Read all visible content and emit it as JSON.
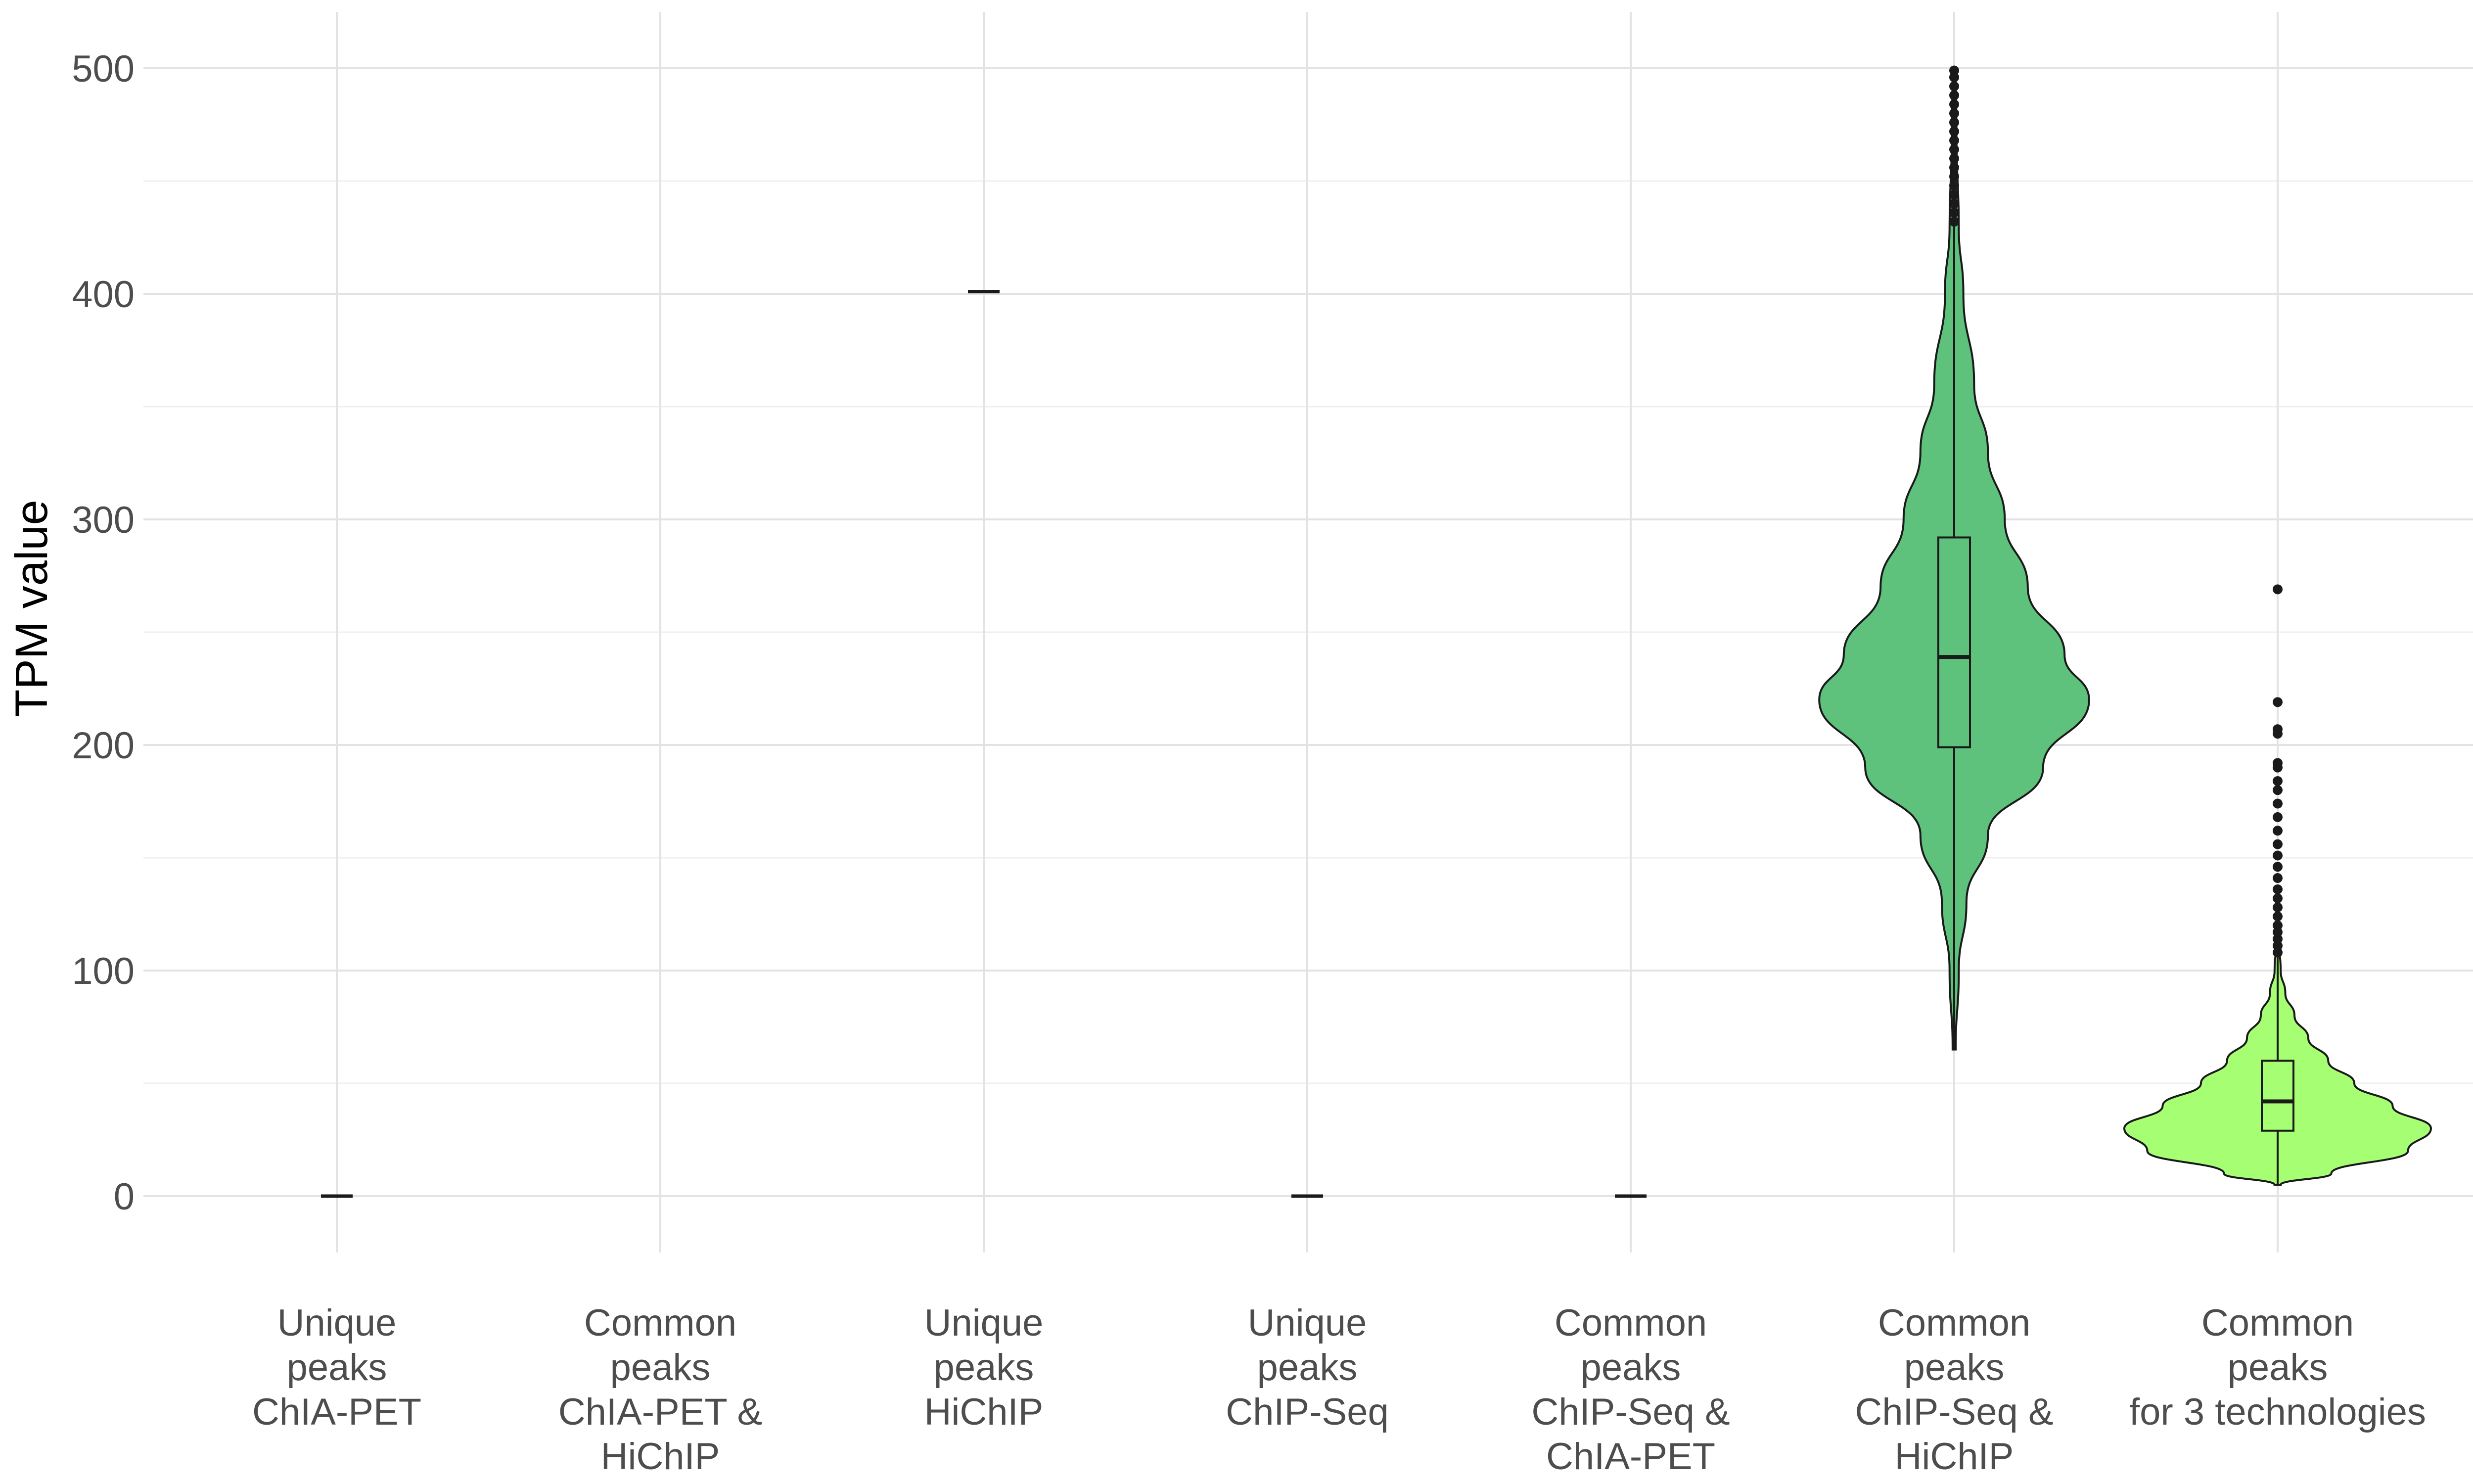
{
  "chart_data": {
    "type": "violin",
    "title": "",
    "xlabel": "",
    "ylabel": "TPM value",
    "ylim": [
      -25,
      525
    ],
    "yticks": [
      0,
      100,
      200,
      300,
      400,
      500
    ],
    "grid": true,
    "legend": "none",
    "categories": [
      {
        "lines": [
          "Unique",
          "peaks",
          "ChIA-PET"
        ],
        "color": "#000000"
      },
      {
        "lines": [
          "Common",
          "peaks",
          "ChIA-PET &",
          "HiChIP"
        ],
        "color": "#000000"
      },
      {
        "lines": [
          "Unique",
          "peaks",
          "HiChIP"
        ],
        "color": "#000000"
      },
      {
        "lines": [
          "Unique",
          "peaks",
          "ChIP-Seq"
        ],
        "color": "#000000"
      },
      {
        "lines": [
          "Common",
          "peaks",
          "ChIP-Seq &",
          "ChIA-PET"
        ],
        "color": "#000000"
      },
      {
        "lines": [
          "Common",
          "peaks",
          "ChIP-Seq &",
          "HiChIP"
        ],
        "color": "#5ec27d"
      },
      {
        "lines": [
          "Common",
          "peaks",
          "for 3 technologies"
        ],
        "color": "#a6ff73"
      }
    ],
    "series": [
      {
        "category_index": 0,
        "kind": "point",
        "value": 0
      },
      {
        "category_index": 1,
        "kind": "empty"
      },
      {
        "category_index": 2,
        "kind": "point",
        "value": 401
      },
      {
        "category_index": 3,
        "kind": "point",
        "value": 0
      },
      {
        "category_index": 4,
        "kind": "point",
        "value": 0
      },
      {
        "category_index": 5,
        "kind": "violin",
        "min": 65,
        "q1": 199,
        "median": 239,
        "q3": 292,
        "whisker_low": 65,
        "whisker_high": 430,
        "outliers": [
          432,
          436,
          440,
          444,
          448,
          452,
          456,
          460,
          464,
          468,
          472,
          476,
          480,
          484,
          488,
          492,
          496,
          499
        ],
        "density": [
          [
            65,
            0.01
          ],
          [
            100,
            0.03
          ],
          [
            130,
            0.08
          ],
          [
            160,
            0.22
          ],
          [
            190,
            0.58
          ],
          [
            220,
            0.88
          ],
          [
            240,
            0.72
          ],
          [
            270,
            0.48
          ],
          [
            300,
            0.33
          ],
          [
            330,
            0.22
          ],
          [
            360,
            0.13
          ],
          [
            400,
            0.06
          ],
          [
            430,
            0.03
          ],
          [
            470,
            0.015
          ],
          [
            499,
            0.01
          ]
        ]
      },
      {
        "category_index": 6,
        "kind": "violin",
        "min": 5,
        "q1": 29,
        "median": 42,
        "q3": 60,
        "whisker_low": 5,
        "whisker_high": 107,
        "outliers": [
          108,
          111,
          114,
          117,
          120,
          124,
          128,
          132,
          136,
          141,
          146,
          151,
          156,
          162,
          168,
          174,
          180,
          184,
          190,
          192,
          205,
          207,
          219,
          269
        ],
        "density": [
          [
            5,
            0.02
          ],
          [
            10,
            0.35
          ],
          [
            20,
            0.85
          ],
          [
            30,
            1.0
          ],
          [
            40,
            0.75
          ],
          [
            50,
            0.5
          ],
          [
            60,
            0.33
          ],
          [
            70,
            0.2
          ],
          [
            80,
            0.11
          ],
          [
            90,
            0.05
          ],
          [
            100,
            0.02
          ],
          [
            115,
            0.005
          ]
        ]
      }
    ]
  }
}
